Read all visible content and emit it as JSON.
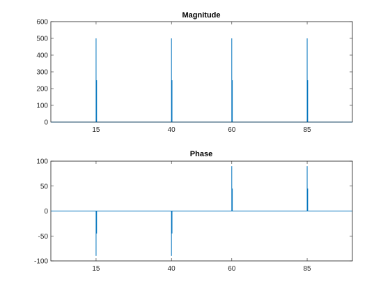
{
  "colors": {
    "series": "#0072BD",
    "axes": "#262626",
    "background": "#ffffff"
  },
  "chart_data": [
    {
      "type": "line",
      "title": "Magnitude",
      "xlabel": "",
      "ylabel": "",
      "xlim": [
        0,
        100
      ],
      "ylim": [
        0,
        600
      ],
      "grid": false,
      "xticks": [
        15,
        40,
        60,
        85
      ],
      "xtick_labels": [
        "15",
        "40",
        "60",
        "85"
      ],
      "yticks": [
        0,
        100,
        200,
        300,
        400,
        500,
        600
      ],
      "ytick_labels": [
        "0",
        "100",
        "200",
        "300",
        "400",
        "500",
        "600"
      ],
      "baseline": 0,
      "series": [
        {
          "x": [
            15,
            15,
            40,
            40,
            60,
            60,
            85,
            85
          ],
          "y": [
            500,
            250,
            500,
            250,
            500,
            250,
            500,
            250
          ]
        }
      ]
    },
    {
      "type": "line",
      "title": "Phase",
      "xlabel": "",
      "ylabel": "",
      "xlim": [
        0,
        100
      ],
      "ylim": [
        -100,
        100
      ],
      "grid": false,
      "xticks": [
        15,
        40,
        60,
        85
      ],
      "xtick_labels": [
        "15",
        "40",
        "60",
        "85"
      ],
      "yticks": [
        -100,
        -50,
        0,
        50,
        100
      ],
      "ytick_labels": [
        "-100",
        "-50",
        "0",
        "50",
        "100"
      ],
      "baseline": 0,
      "series": [
        {
          "x": [
            15,
            15,
            40,
            40,
            60,
            60,
            85,
            85
          ],
          "y": [
            -90,
            -45,
            -90,
            -45,
            90,
            45,
            90,
            45
          ]
        }
      ]
    }
  ]
}
